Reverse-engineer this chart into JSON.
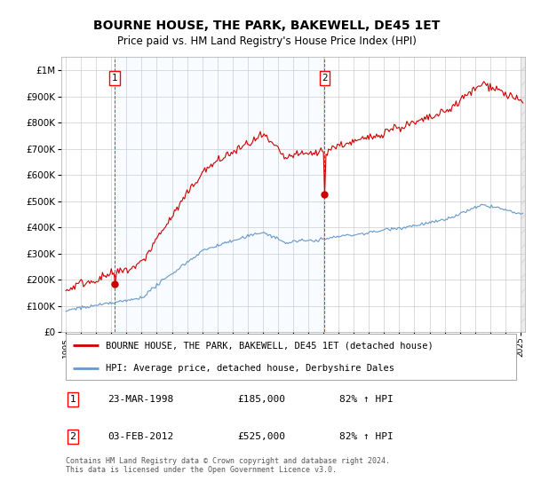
{
  "title": "BOURNE HOUSE, THE PARK, BAKEWELL, DE45 1ET",
  "subtitle": "Price paid vs. HM Land Registry's House Price Index (HPI)",
  "title_fontsize": 10,
  "subtitle_fontsize": 8.5,
  "background_color": "#ffffff",
  "plot_bg_color": "#ffffff",
  "grid_color": "#cccccc",
  "line1_color": "#cc0000",
  "line2_color": "#6699cc",
  "ylim": [
    0,
    1050000
  ],
  "yticks": [
    0,
    100000,
    200000,
    300000,
    400000,
    500000,
    600000,
    700000,
    800000,
    900000,
    1000000
  ],
  "ytick_labels": [
    "£0",
    "£100K",
    "£200K",
    "£300K",
    "£400K",
    "£500K",
    "£600K",
    "£700K",
    "£800K",
    "£900K",
    "£1M"
  ],
  "sale1_date": "23-MAR-1998",
  "sale1_price": 185000,
  "sale1_hpi_text": "82% ↑ HPI",
  "sale2_date": "03-FEB-2012",
  "sale2_price": 525000,
  "sale2_hpi_text": "82% ↑ HPI",
  "legend_line1": "BOURNE HOUSE, THE PARK, BAKEWELL, DE45 1ET (detached house)",
  "legend_line2": "HPI: Average price, detached house, Derbyshire Dales",
  "footer": "Contains HM Land Registry data © Crown copyright and database right 2024.\nThis data is licensed under the Open Government Licence v3.0.",
  "sale1_x": 1998.22,
  "sale2_x": 2012.08,
  "xmin": 1995.0,
  "xmax": 2025.0
}
